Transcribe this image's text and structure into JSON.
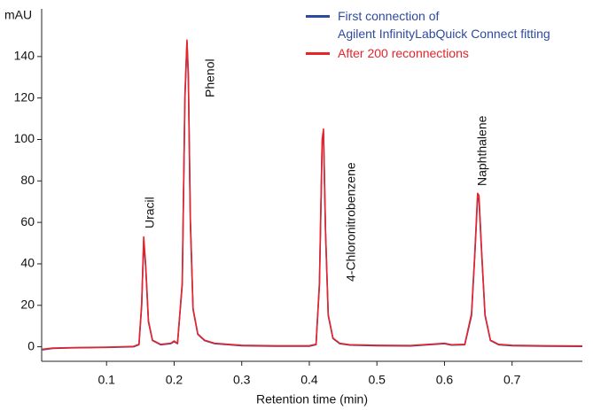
{
  "chart_data": {
    "type": "line",
    "y_label": "mAU",
    "x_label": "Retention time (min)",
    "annotations": [
      "Uracil",
      "Phenol",
      "4-Chloronitrobenzene",
      "Naphthalene"
    ],
    "x": [
      0.005,
      0.02,
      0.05,
      0.1,
      0.14,
      0.148,
      0.152,
      0.155,
      0.158,
      0.162,
      0.168,
      0.18,
      0.195,
      0.2,
      0.205,
      0.212,
      0.216,
      0.219,
      0.221,
      0.224,
      0.228,
      0.235,
      0.245,
      0.26,
      0.3,
      0.35,
      0.4,
      0.41,
      0.415,
      0.419,
      0.421,
      0.424,
      0.428,
      0.435,
      0.445,
      0.46,
      0.5,
      0.55,
      0.6,
      0.61,
      0.63,
      0.64,
      0.645,
      0.649,
      0.651,
      0.655,
      0.66,
      0.668,
      0.68,
      0.7,
      0.75,
      0.804
    ],
    "series": [
      {
        "name": "First connection of\nAgilent InfinityLabQuick Connect fitting",
        "color": "#2e4a9e",
        "values": [
          -1.5,
          -0.8,
          -0.5,
          -0.3,
          0,
          1,
          20,
          51,
          38,
          12,
          3,
          1,
          1.5,
          2.5,
          1.5,
          30,
          120,
          147,
          130,
          60,
          18,
          6,
          3,
          1.5,
          0.5,
          0.3,
          0.3,
          1,
          30,
          98,
          103,
          55,
          15,
          4,
          1.5,
          0.8,
          0.5,
          0.4,
          1.5,
          0.8,
          1,
          15,
          45,
          72,
          71,
          45,
          15,
          3,
          1,
          0.5,
          0.3,
          0.2
        ]
      },
      {
        "name": "After 200 reconnections",
        "color": "#e8232a",
        "values": [
          -1.2,
          -0.6,
          -0.4,
          -0.2,
          0.2,
          1.2,
          21,
          53,
          39,
          12.5,
          3.2,
          1.2,
          1.7,
          2.8,
          1.7,
          31,
          122,
          148,
          132,
          62,
          18.5,
          6.2,
          3.2,
          1.7,
          0.7,
          0.5,
          0.5,
          1.2,
          31,
          100,
          105,
          56,
          15.5,
          4.2,
          1.7,
          1,
          0.7,
          0.6,
          1.7,
          1,
          1.2,
          16,
          46,
          74,
          73,
          46,
          15.5,
          3.2,
          1.2,
          0.7,
          0.5,
          0.4
        ]
      }
    ],
    "xlim": [
      0.004,
      0.804
    ],
    "ylim": [
      -7,
      163
    ],
    "xticks": [
      0.1,
      0.2,
      0.3,
      0.4,
      0.5,
      0.6,
      0.7
    ],
    "yticks": [
      0,
      20,
      40,
      60,
      80,
      100,
      120,
      140
    ]
  }
}
